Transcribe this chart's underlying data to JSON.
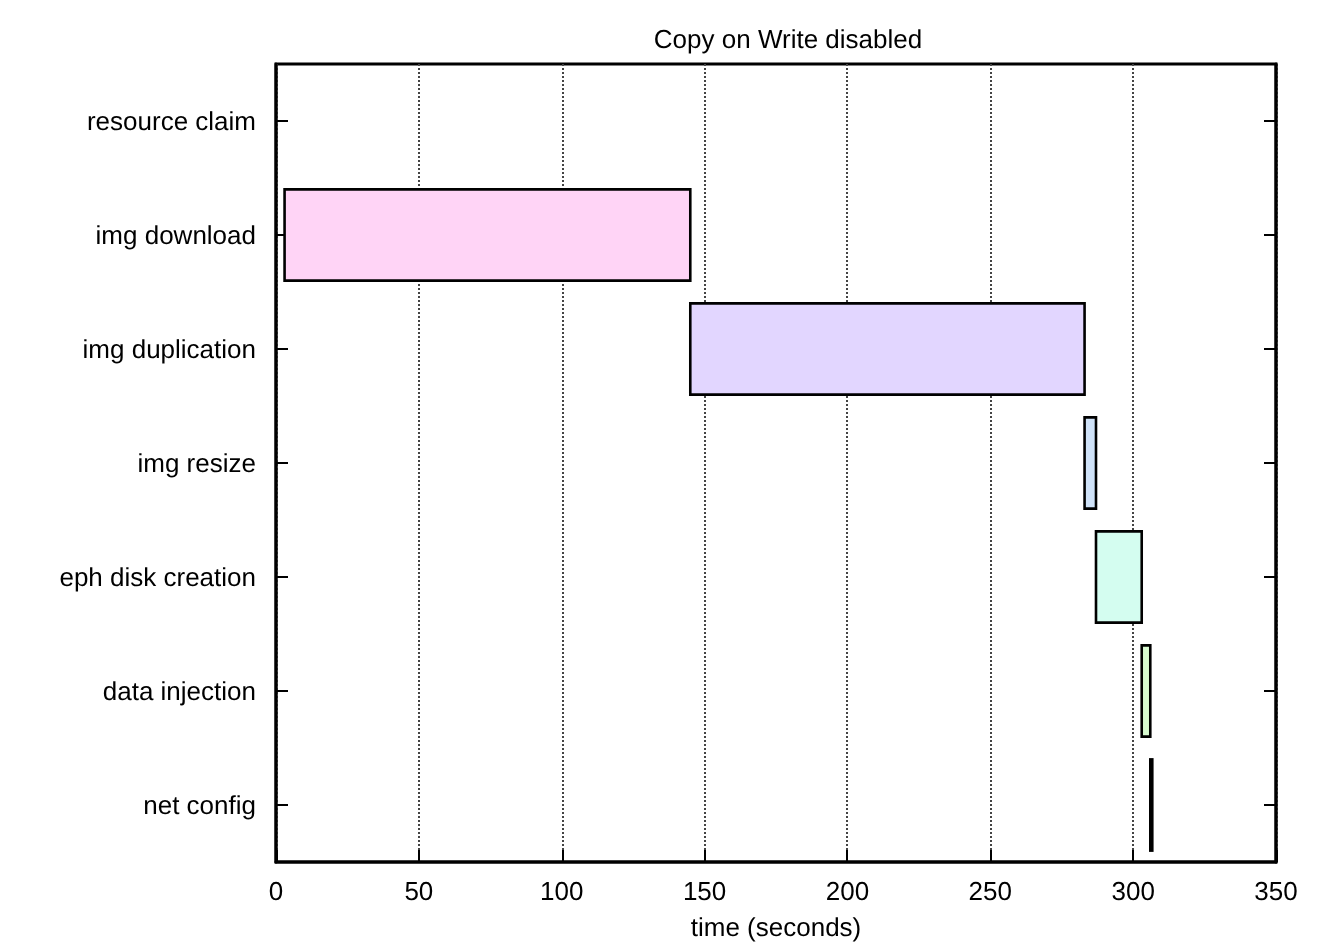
{
  "chart_data": {
    "type": "bar",
    "orientation": "horizontal",
    "title": "Copy on Write disabled",
    "xlabel": "time (seconds)",
    "categories": [
      "resource claim",
      "img download",
      "img duplication",
      "img resize",
      "eph disk creation",
      "data injection",
      "net config"
    ],
    "base": [
      null,
      3,
      145,
      283,
      287,
      303,
      306
    ],
    "values": [
      null,
      142,
      138,
      4,
      16,
      3,
      0.5
    ],
    "colors": [
      null,
      "#ffd4f6",
      "#e2d6ff",
      "#cfe2f8",
      "#d4fdf0",
      "#d8fbd0",
      "#000000"
    ],
    "xlim": [
      0,
      350
    ],
    "xticks": [
      0,
      50,
      100,
      150,
      200,
      250,
      300,
      350
    ],
    "grid": "x"
  }
}
